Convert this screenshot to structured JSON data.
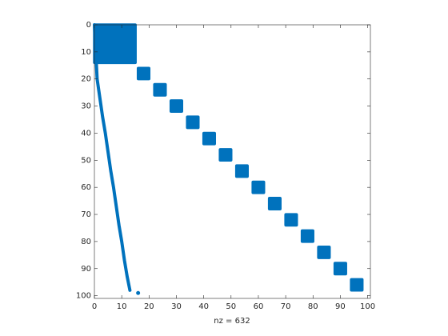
{
  "chart_data": {
    "type": "spy",
    "color": "#0072bd",
    "xlabel": "nz = 632",
    "xlim": [
      0,
      101
    ],
    "ylim": [
      0,
      101
    ],
    "xticks": [
      0,
      10,
      20,
      30,
      40,
      50,
      60,
      70,
      80,
      90,
      100
    ],
    "yticks": [
      0,
      10,
      20,
      30,
      40,
      50,
      60,
      70,
      80,
      90,
      100
    ],
    "blocks": [
      {
        "rows": [
          0,
          14
        ],
        "cols": [
          0,
          15
        ]
      },
      {
        "rows": [
          16,
          20
        ],
        "cols": [
          16,
          20
        ]
      },
      {
        "rows": [
          22,
          26
        ],
        "cols": [
          22,
          26
        ]
      },
      {
        "rows": [
          28,
          32
        ],
        "cols": [
          28,
          32
        ]
      },
      {
        "rows": [
          34,
          38
        ],
        "cols": [
          34,
          38
        ]
      },
      {
        "rows": [
          40,
          44
        ],
        "cols": [
          40,
          44
        ]
      },
      {
        "rows": [
          46,
          50
        ],
        "cols": [
          46,
          50
        ]
      },
      {
        "rows": [
          52,
          56
        ],
        "cols": [
          52,
          56
        ]
      },
      {
        "rows": [
          58,
          62
        ],
        "cols": [
          58,
          62
        ]
      },
      {
        "rows": [
          64,
          68
        ],
        "cols": [
          64,
          68
        ]
      },
      {
        "rows": [
          70,
          74
        ],
        "cols": [
          70,
          74
        ]
      },
      {
        "rows": [
          76,
          80
        ],
        "cols": [
          76,
          80
        ]
      },
      {
        "rows": [
          82,
          86
        ],
        "cols": [
          82,
          86
        ]
      },
      {
        "rows": [
          88,
          92
        ],
        "cols": [
          88,
          92
        ]
      },
      {
        "rows": [
          94,
          98
        ],
        "cols": [
          94,
          98
        ]
      }
    ],
    "band": {
      "x": [
        0,
        1,
        2,
        3,
        4,
        5,
        6,
        7,
        8,
        9,
        10,
        11,
        12,
        13
      ],
      "y": [
        0,
        20,
        27,
        34,
        40,
        47,
        54,
        60,
        67,
        74,
        80,
        87,
        93,
        98
      ]
    },
    "points": {
      "x": [
        16
      ],
      "y": [
        99
      ]
    }
  }
}
